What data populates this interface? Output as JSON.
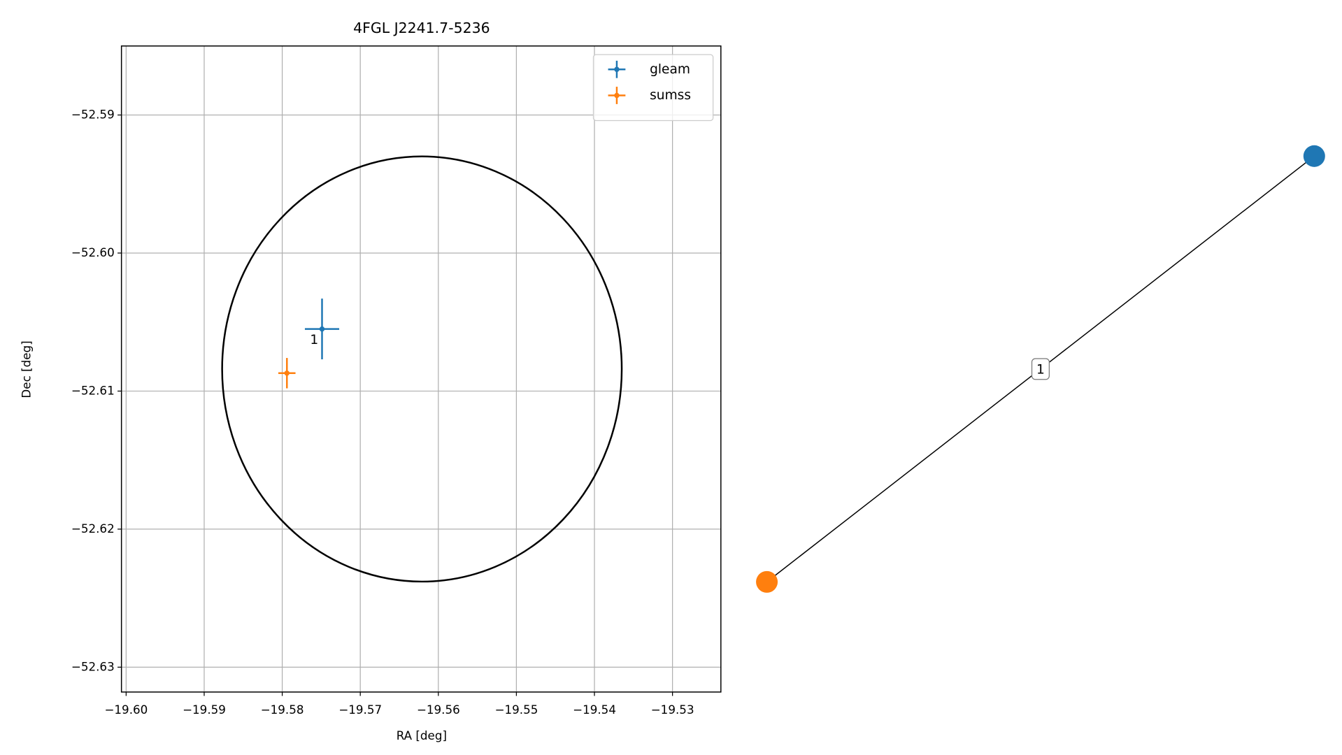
{
  "chart_data": {
    "type": "scatter",
    "title": "4FGL J2241.7-5236",
    "xlabel": "RA [deg]",
    "ylabel": "Dec [deg]",
    "xlim": [
      -19.6006,
      -19.5238
    ],
    "ylim": [
      -52.6318,
      -52.585
    ],
    "xticks": [
      {
        "value": -19.6,
        "label": "−19.60"
      },
      {
        "value": -19.59,
        "label": "−19.59"
      },
      {
        "value": -19.58,
        "label": "−19.58"
      },
      {
        "value": -19.57,
        "label": "−19.57"
      },
      {
        "value": -19.56,
        "label": "−19.56"
      },
      {
        "value": -19.55,
        "label": "−19.55"
      },
      {
        "value": -19.54,
        "label": "−19.54"
      },
      {
        "value": -19.53,
        "label": "−19.53"
      }
    ],
    "yticks": [
      {
        "value": -52.59,
        "label": "−52.59"
      },
      {
        "value": -52.6,
        "label": "−52.60"
      },
      {
        "value": -52.61,
        "label": "−52.61"
      },
      {
        "value": -52.62,
        "label": "−52.62"
      },
      {
        "value": -52.63,
        "label": "−52.63"
      }
    ],
    "grid": true,
    "legend": "upper right",
    "series": [
      {
        "name": "gleam",
        "color": "#1f77b4",
        "x": [
          -19.5749
        ],
        "values": [
          -52.6055
        ],
        "xerr": [
          0.0022
        ],
        "yerr": [
          0.0022
        ]
      },
      {
        "name": "sumss",
        "color": "#ff7f0e",
        "x": [
          -19.5794
        ],
        "values": [
          -52.6087
        ],
        "xerr": [
          0.0011
        ],
        "yerr": [
          0.0011
        ]
      }
    ],
    "annotations": [
      {
        "text": "1",
        "series": 0,
        "index": 0
      }
    ],
    "ellipse": {
      "center": [
        -19.5621,
        -52.6084
      ],
      "rx": 0.0256,
      "ry": 0.0154,
      "color": "#000000"
    }
  },
  "graph": {
    "nodes": [
      {
        "color": "#1f77b4"
      },
      {
        "color": "#ff7f0e"
      }
    ],
    "edges": [
      {
        "source": 0,
        "target": 1,
        "label": "1"
      }
    ]
  }
}
